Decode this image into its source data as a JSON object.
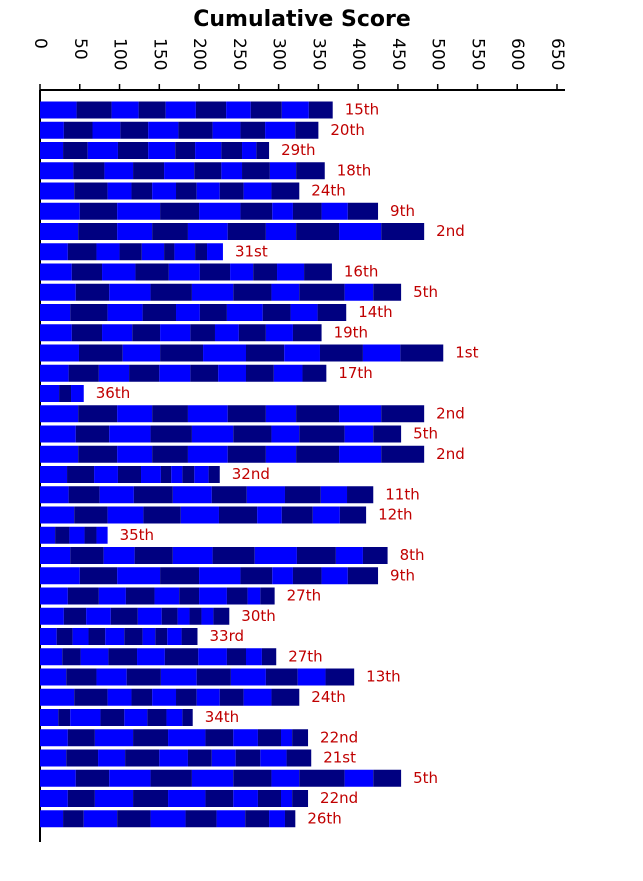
{
  "chart_data": {
    "type": "stacked-barh",
    "title": "Cumulative Score",
    "colors": [
      "#0000ff",
      "#000080"
    ],
    "label_color": "#c00000",
    "xlim": [
      0,
      650
    ],
    "xticks": [
      0,
      50,
      100,
      150,
      200,
      250,
      300,
      350,
      400,
      450,
      500,
      550,
      600,
      650
    ],
    "bars": [
      {
        "label": "15th",
        "values": [
          46,
          44,
          34,
          34,
          38,
          38,
          31,
          39,
          34,
          30
        ]
      },
      {
        "label": "20th",
        "values": [
          30,
          36,
          35,
          35,
          38,
          43,
          35,
          31,
          38,
          29
        ]
      },
      {
        "label": "29th",
        "values": [
          29,
          31,
          38,
          38,
          34,
          25,
          33,
          26,
          18,
          16
        ]
      },
      {
        "label": "18th",
        "values": [
          42,
          39,
          36,
          39,
          38,
          34,
          26,
          35,
          33,
          36
        ]
      },
      {
        "label": "24th",
        "values": [
          43,
          42,
          30,
          26,
          30,
          26,
          29,
          30,
          35,
          35
        ]
      },
      {
        "label": "9th",
        "values": [
          50,
          47,
          54,
          49,
          52,
          40,
          26,
          36,
          33,
          38
        ]
      },
      {
        "label": "2nd",
        "values": [
          48,
          49,
          44,
          45,
          50,
          48,
          38,
          54,
          53,
          54
        ]
      },
      {
        "label": "31st",
        "values": [
          35,
          36,
          29,
          28,
          28,
          13,
          26,
          15,
          20
        ]
      },
      {
        "label": "16th",
        "values": [
          40,
          38,
          42,
          42,
          39,
          38,
          29,
          30,
          34,
          35
        ]
      },
      {
        "label": "5th",
        "values": [
          45,
          42,
          52,
          52,
          52,
          48,
          35,
          57,
          36,
          35
        ]
      },
      {
        "label": "14th",
        "values": [
          38,
          47,
          44,
          42,
          30,
          34,
          45,
          35,
          34,
          36
        ]
      },
      {
        "label": "19th",
        "values": [
          40,
          38,
          38,
          35,
          38,
          31,
          30,
          34,
          34,
          36
        ]
      },
      {
        "label": "1st",
        "values": [
          49,
          55,
          47,
          54,
          54,
          48,
          45,
          54,
          47,
          54
        ]
      },
      {
        "label": "17th",
        "values": [
          36,
          38,
          38,
          38,
          39,
          35,
          35,
          35,
          36,
          30
        ]
      },
      {
        "label": "36th",
        "values": [
          24,
          15,
          16
        ]
      },
      {
        "label": "2nd",
        "values": [
          48,
          49,
          44,
          45,
          50,
          48,
          38,
          54,
          53,
          54
        ]
      },
      {
        "label": "5th",
        "values": [
          45,
          42,
          52,
          52,
          52,
          48,
          35,
          57,
          36,
          35
        ]
      },
      {
        "label": "2nd",
        "values": [
          48,
          49,
          44,
          45,
          50,
          48,
          38,
          54,
          53,
          54
        ]
      },
      {
        "label": "32nd",
        "values": [
          34,
          34,
          30,
          29,
          25,
          13,
          14,
          15,
          18,
          14
        ]
      },
      {
        "label": "11th",
        "values": [
          36,
          39,
          43,
          49,
          49,
          44,
          48,
          45,
          33,
          33
        ]
      },
      {
        "label": "12th",
        "values": [
          43,
          42,
          45,
          47,
          48,
          48,
          31,
          39,
          34,
          33
        ]
      },
      {
        "label": "35th",
        "values": [
          19,
          18,
          19,
          15,
          14
        ]
      },
      {
        "label": "8th",
        "values": [
          38,
          42,
          39,
          48,
          50,
          53,
          53,
          49,
          34,
          31
        ]
      },
      {
        "label": "9th",
        "values": [
          50,
          47,
          54,
          49,
          52,
          40,
          26,
          36,
          33,
          38
        ]
      },
      {
        "label": "27th",
        "values": [
          35,
          39,
          34,
          36,
          31,
          25,
          35,
          26,
          16,
          18
        ]
      },
      {
        "label": "30th",
        "values": [
          30,
          28,
          31,
          34,
          30,
          20,
          15,
          15,
          15,
          20
        ]
      },
      {
        "label": "33rd",
        "values": [
          21,
          20,
          20,
          21,
          24,
          23,
          16,
          15,
          18,
          20
        ]
      },
      {
        "label": "27th",
        "values": [
          28,
          23,
          35,
          36,
          35,
          42,
          36,
          24,
          20,
          18
        ]
      },
      {
        "label": "13th",
        "values": [
          33,
          38,
          38,
          43,
          45,
          43,
          44,
          40,
          35,
          36
        ]
      },
      {
        "label": "24th",
        "values": [
          43,
          42,
          30,
          26,
          30,
          26,
          29,
          30,
          35,
          35
        ]
      },
      {
        "label": "34th",
        "values": [
          23,
          15,
          38,
          30,
          29,
          24,
          20,
          13
        ]
      },
      {
        "label": "22nd",
        "values": [
          35,
          34,
          48,
          44,
          47,
          35,
          31,
          29,
          14,
          20
        ]
      },
      {
        "label": "21st",
        "values": [
          33,
          40,
          34,
          43,
          36,
          30,
          30,
          31,
          33,
          31
        ]
      },
      {
        "label": "5th",
        "values": [
          45,
          42,
          52,
          52,
          52,
          48,
          35,
          57,
          36,
          35
        ]
      },
      {
        "label": "22nd",
        "values": [
          35,
          34,
          48,
          44,
          47,
          35,
          31,
          29,
          14,
          20
        ]
      },
      {
        "label": "26th",
        "values": [
          29,
          26,
          42,
          42,
          44,
          39,
          36,
          30,
          20,
          13
        ]
      }
    ]
  }
}
